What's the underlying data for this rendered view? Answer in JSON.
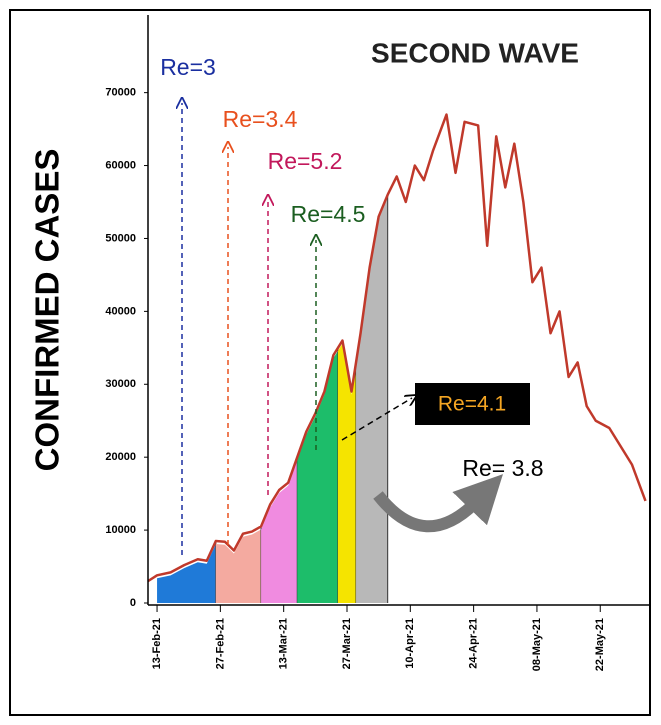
{
  "chart_data": {
    "type": "line",
    "title": "SECOND WAVE",
    "y_label": "CONFIRMED CASES",
    "color": "#c0392b",
    "x": [
      "2021-02-11",
      "2021-02-13",
      "2021-02-16",
      "2021-02-19",
      "2021-02-22",
      "2021-02-24",
      "2021-02-26",
      "2021-02-28",
      "2021-03-02",
      "2021-03-04",
      "2021-03-06",
      "2021-03-08",
      "2021-03-10",
      "2021-03-12",
      "2021-03-14",
      "2021-03-16",
      "2021-03-18",
      "2021-03-20",
      "2021-03-22",
      "2021-03-24",
      "2021-03-26",
      "2021-03-28",
      "2021-03-30",
      "2021-04-01",
      "2021-04-03",
      "2021-04-05",
      "2021-04-07",
      "2021-04-09",
      "2021-04-11",
      "2021-04-13",
      "2021-04-15",
      "2021-04-18",
      "2021-04-20",
      "2021-04-22",
      "2021-04-25",
      "2021-04-27",
      "2021-04-29",
      "2021-05-01",
      "2021-05-03",
      "2021-05-05",
      "2021-05-07",
      "2021-05-09",
      "2021-05-11",
      "2021-05-13",
      "2021-05-15",
      "2021-05-17",
      "2021-05-19",
      "2021-05-21",
      "2021-05-24",
      "2021-05-27",
      "2021-05-29",
      "2021-06-01"
    ],
    "values": [
      3000,
      3800,
      4200,
      5200,
      6000,
      5800,
      8500,
      8400,
      7200,
      9500,
      9800,
      10500,
      13500,
      15500,
      16500,
      20000,
      23500,
      26000,
      29000,
      34000,
      36000,
      29000,
      37000,
      46000,
      53000,
      56000,
      58500,
      55000,
      60000,
      58000,
      62000,
      67000,
      59000,
      66000,
      65500,
      49000,
      64000,
      57000,
      63000,
      55000,
      44000,
      46000,
      37000,
      40000,
      31000,
      33000,
      27000,
      25000,
      24000,
      21000,
      19000,
      14000
    ],
    "xlim": [
      "2021-02-11",
      "2021-06-02"
    ],
    "xticks": [
      {
        "value": "2021-02-13",
        "label": "13-Feb-21"
      },
      {
        "value": "2021-02-27",
        "label": "27-Feb-21"
      },
      {
        "value": "2021-03-13",
        "label": "13-Mar-21"
      },
      {
        "value": "2021-03-27",
        "label": "27-Mar-21"
      },
      {
        "value": "2021-04-10",
        "label": "10-Apr-21"
      },
      {
        "value": "2021-04-24",
        "label": "24-Apr-21"
      },
      {
        "value": "2021-05-08",
        "label": "08-May-21"
      },
      {
        "value": "2021-05-22",
        "label": "22-May-21"
      }
    ],
    "ylim": [
      0,
      70500
    ],
    "yticks": [
      0,
      10000,
      20000,
      30000,
      40000,
      50000,
      60000,
      70000
    ],
    "grid": false,
    "shaded_regions": [
      {
        "start": "2021-02-13",
        "end": "2021-02-26",
        "color": "#1f7ad8"
      },
      {
        "start": "2021-02-26",
        "end": "2021-03-08",
        "color": "#f4aaa0"
      },
      {
        "start": "2021-03-08",
        "end": "2021-03-16",
        "color": "#f08be0"
      },
      {
        "start": "2021-03-16",
        "end": "2021-03-25",
        "color": "#1dbd6a"
      },
      {
        "start": "2021-03-25",
        "end": "2021-03-29",
        "color": "#f5e400"
      },
      {
        "start": "2021-03-29",
        "end": "2021-04-05",
        "color": "#b8b8b8"
      }
    ],
    "annotations": [
      "Re=3",
      "Re=3.4",
      "Re=5.2",
      "Re=4.5",
      "Re=4.1",
      "Re= 3.8"
    ]
  }
}
